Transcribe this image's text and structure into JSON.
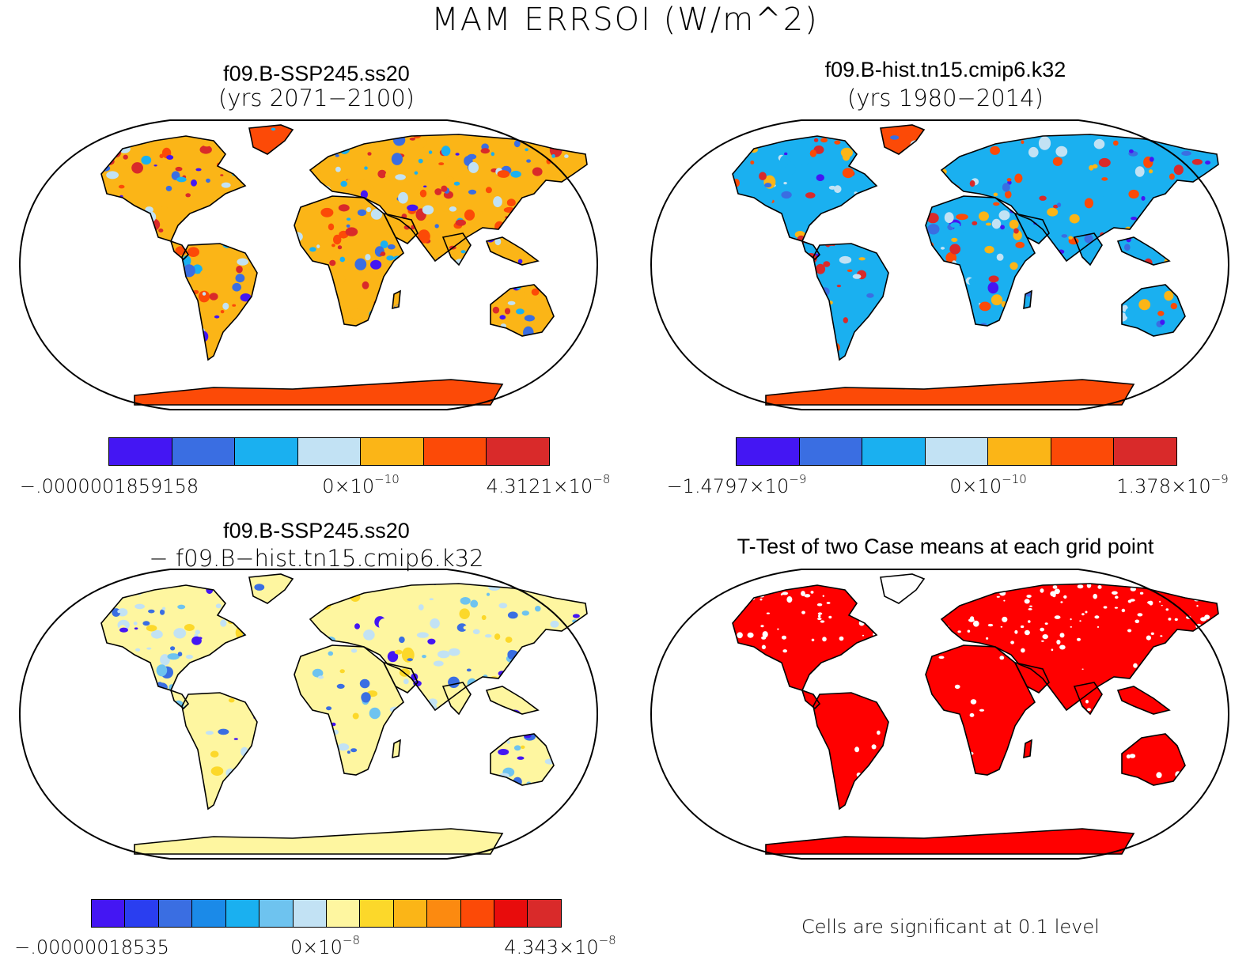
{
  "title": "MAM ERRSOI (W/m^2)",
  "panels": {
    "top_left": {
      "title": "f09.B-SSP245.ss20",
      "subtitle": "(yrs 2071−2100)",
      "colorbar": {
        "colors": [
          "#4416f3",
          "#3a6ee2",
          "#1ab0f0",
          "#c2e2f4",
          "#fbb517",
          "#fc4a07",
          "#d92a2a"
        ],
        "labels": [
          {
            "base": "−.0000001859158",
            "exp": ""
          },
          {
            "base": "0×10",
            "exp": "−10"
          },
          {
            "base": "4.3121×10",
            "exp": "−8"
          }
        ]
      }
    },
    "top_right": {
      "title": "f09.B-hist.tn15.cmip6.k32",
      "subtitle": "(yrs 1980−2014)",
      "colorbar": {
        "colors": [
          "#4416f3",
          "#3a6ee2",
          "#1ab0f0",
          "#c2e2f4",
          "#fbb517",
          "#fc4a07",
          "#d92a2a"
        ],
        "labels": [
          {
            "base": "−1.4797×10",
            "exp": "−9"
          },
          {
            "base": "0×10",
            "exp": "−10"
          },
          {
            "base": "1.378×10",
            "exp": "−9"
          }
        ]
      }
    },
    "bottom_left": {
      "title": "f09.B-SSP245.ss20",
      "subtitle": "− f09.B−hist.tn15.cmip6.k32",
      "colorbar": {
        "colors": [
          "#4416f3",
          "#2a3ef0",
          "#3a6ee2",
          "#1b8ae8",
          "#1ab0f0",
          "#6ec3ef",
          "#c2e2f4",
          "#fef6a0",
          "#fcd82a",
          "#fbb517",
          "#fc8a10",
          "#fc4a07",
          "#e80c0c",
          "#d92a2a"
        ],
        "labels": [
          {
            "base": "−.00000018535",
            "exp": ""
          },
          {
            "base": "0×10",
            "exp": "−8"
          },
          {
            "base": "4.343×10",
            "exp": "−8"
          }
        ]
      }
    },
    "bottom_right": {
      "title": "T-Test of two Case means at each grid point",
      "footnote": "Cells are significant at 0.1 level",
      "fill_color": "#ff0000"
    }
  }
}
